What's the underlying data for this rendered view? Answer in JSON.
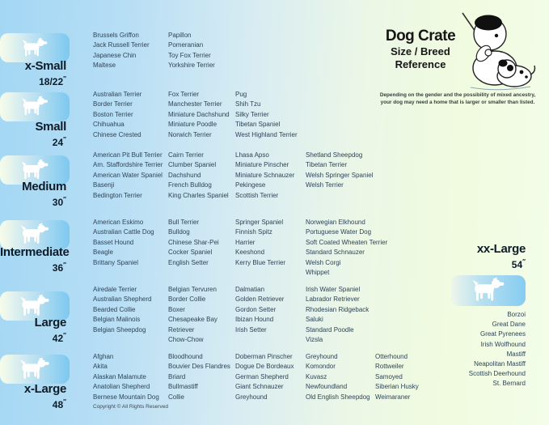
{
  "header": {
    "title": "Dog Crate",
    "subtitle_line1": "Size / Breed",
    "subtitle_line2": "Reference",
    "disclaimer_line1": "Depending on the gender and the possibility of mixed ancestry,",
    "disclaimer_line2": "your dog may need  a home that is larger or smaller than listed."
  },
  "inch_mark": "″",
  "footer": {
    "copyright": "Copyright © All Rights Reserved"
  },
  "colors": {
    "background_left_blue": "#a3d7f4",
    "background_right_green": "#f3fde9",
    "box_blue": "#7dc8f0",
    "box_pale": "#f7fcea",
    "breed_text": "#2e4456",
    "label_text": "#0e1c28"
  },
  "sizes": [
    {
      "label": "x-Small",
      "dimension": "18/22",
      "icon": "papillon-silhouette",
      "columns": [
        [
          "Brussels Griffon",
          "Jack Russell Terrier",
          "Japanese Chin",
          "Maltese"
        ],
        [
          "Papillon",
          "Pomeranian",
          "Toy Fox Terrier",
          "Yorkshire Terrier"
        ]
      ]
    },
    {
      "label": "Small",
      "dimension": "24",
      "icon": "pug-silhouette",
      "columns": [
        [
          "Australian Terrier",
          "Border Terrier",
          "Boston Terrier",
          "Chihuahua",
          "Chinese Crested"
        ],
        [
          "Fox Terrier",
          "Manchester Terrier",
          "Miniature Dachshund",
          "Miniature Poodle",
          "Norwich Terrier"
        ],
        [
          "Pug",
          "Shih Tzu",
          "Silky Terrier",
          "Tibetan Spaniel",
          "West Highland Terrier"
        ]
      ]
    },
    {
      "label": "Medium",
      "dimension": "30",
      "icon": "terrier-silhouette",
      "columns": [
        [
          "American Pit Bull Terrier",
          "Am. Staffordshire Terrier",
          "American Water Spaniel",
          "Basenji",
          "Bedington Terrier"
        ],
        [
          "Cairn Terrier",
          "Clumber Spaniel",
          "Dachshund",
          "French Bulldog",
          "King Charles Spaniel"
        ],
        [
          "Lhasa Apso",
          "Miniature Pinscher",
          "Miniature Schnauzer",
          "Pekingese",
          "Scottish Terrier"
        ],
        [
          "Shetland Sheepdog",
          "Tibetan Terrier",
          "Welsh Springer Spaniel",
          "Welsh Terrier"
        ]
      ]
    },
    {
      "label": "Intermediate",
      "dimension": "36",
      "icon": "spaniel-silhouette",
      "columns": [
        [
          "American Eskimo",
          "Australian Cattle Dog",
          "Basset Hound",
          "Beagle",
          "Brittany Spaniel"
        ],
        [
          "Bull Terrier",
          "Bulldog",
          "Chinese Shar-Pei",
          "Cocker Spaniel",
          "English Setter"
        ],
        [
          "Springer Spaniel",
          "Finnish Spitz",
          "Harrier",
          "Keeshond",
          "Kerry Blue Terrier"
        ],
        [
          "Norwegian Elkhound",
          "Portuguese Water Dog",
          "Soft Coated Wheaten Terrier",
          "Standard Schnauzer",
          "Welsh Corgi",
          "Whippet"
        ]
      ]
    },
    {
      "label": "Large",
      "dimension": "42",
      "icon": "retriever-silhouette",
      "columns": [
        [
          "Airedale Terrier",
          "Australian Shepherd",
          "Bearded Collie",
          "Belgian Malinois",
          "Belgian Sheepdog"
        ],
        [
          "Belgian Tervuren",
          "Border Collie",
          "Boxer",
          "Chesapeake Bay Retriever",
          "Chow-Chow"
        ],
        [
          "Dalmatian",
          "Golden Retriever",
          "Gordon Setter",
          "Ibizan Hound",
          "Irish Setter"
        ],
        [
          "Irish Water Spaniel",
          "Labrador Retriever",
          "Rhodesian Ridgeback",
          "Saluki",
          "Standard Poodle",
          "Vizsla"
        ]
      ]
    },
    {
      "label": "x-Large",
      "dimension": "48",
      "icon": "akita-silhouette",
      "columns": [
        [
          "Afghan",
          "Akita",
          "Alaskan Malamute",
          "Anatolian Shepherd",
          "Bernese Mountain Dog"
        ],
        [
          "Bloodhound",
          "Bouvier Des Flandres",
          "Briard",
          "Bullmastiff",
          "Collie"
        ],
        [
          "Doberman Pinscher",
          "Dogue De Bordeaux",
          "German Shepherd",
          "Giant Schnauzer",
          "Greyhound"
        ],
        [
          "Greyhound",
          "Komondor",
          "Kuvasz",
          "Newfoundland",
          "Old English Sheepdog"
        ],
        [
          "Otterhound",
          "Rottweiler",
          "Samoyed",
          "Siberian Husky",
          "Weimaraner"
        ]
      ]
    },
    {
      "label": "xx-Large",
      "dimension": "54",
      "icon": "great-dane-silhouette",
      "columns": [
        [
          "Borzoi",
          "Great Dane",
          "Great Pyrenees",
          "Irish Wolfhound",
          "Mastiff",
          "Neapolitan Mastiff",
          "Scottish Deerhound",
          "St. Bernard"
        ]
      ]
    }
  ]
}
